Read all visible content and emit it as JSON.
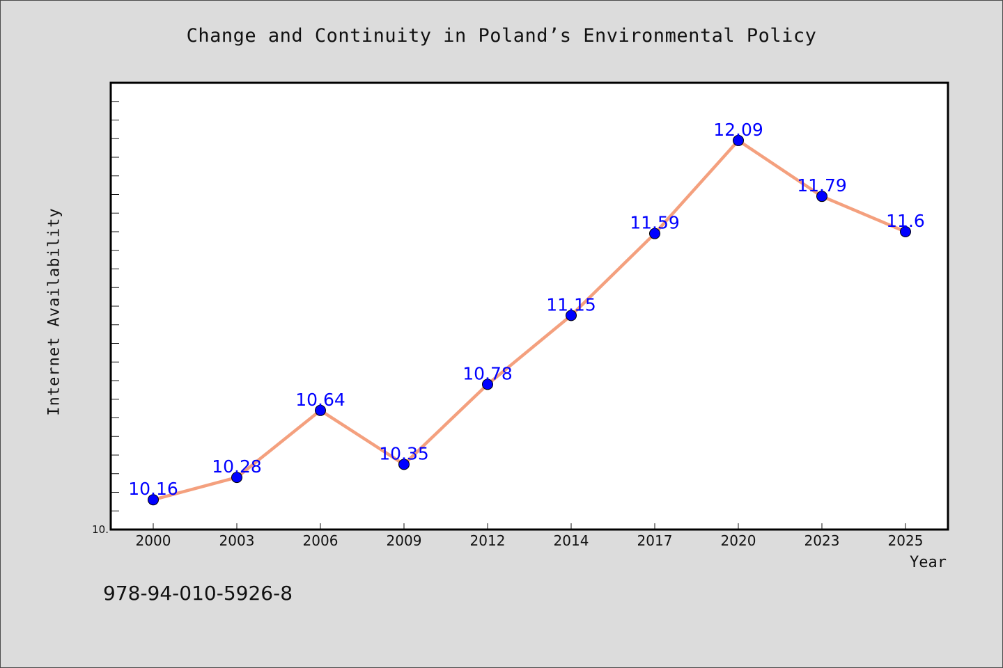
{
  "chart_data": {
    "type": "line",
    "title": "Change and Continuity in Poland’s Environmental Policy",
    "xlabel": "Year",
    "ylabel": "Internet Availability",
    "categories": [
      "2000",
      "2003",
      "2006",
      "2009",
      "2012",
      "2014",
      "2017",
      "2020",
      "2023",
      "2025"
    ],
    "values": [
      10.16,
      10.28,
      10.64,
      10.35,
      10.78,
      11.15,
      11.59,
      12.09,
      11.79,
      11.6
    ],
    "data_labels": [
      "10.16",
      "10.28",
      "10.64",
      "10.35",
      "10.78",
      "11.15",
      "11.59",
      "12.09",
      "11.79",
      "11.6"
    ],
    "ylim": [
      10.0,
      12.4
    ],
    "y_tick_label": "10.",
    "grid": false,
    "legend": "none",
    "line_color": "#f4a07e",
    "marker_color": "#0000ff",
    "label_color": "#0000ff"
  },
  "footnote": "978-94-010-5926-8"
}
